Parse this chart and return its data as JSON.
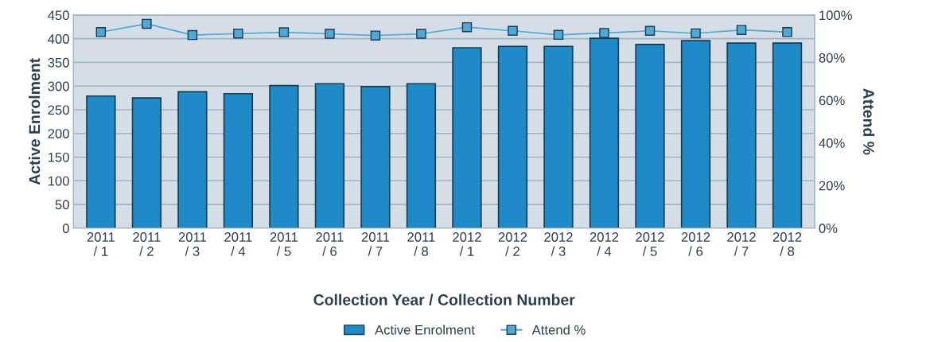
{
  "chart_data": {
    "type": "bar",
    "xlabel": "Collection Year / Collection Number",
    "ylabel": "Active Enrolment",
    "y2label": "Attend %",
    "categories": [
      "2011\n/ 1",
      "2011\n/ 2",
      "2011\n/ 3",
      "2011\n/ 4",
      "2011\n/ 5",
      "2011\n/ 6",
      "2011\n/ 7",
      "2011\n/ 8",
      "2012\n/ 1",
      "2012\n/ 2",
      "2012\n/ 3",
      "2012\n/ 4",
      "2012\n/ 5",
      "2012\n/ 6",
      "2012\n/ 7",
      "2012\n/ 8"
    ],
    "series": [
      {
        "name": "Active Enrolment",
        "color": "#1f8ac8",
        "values": [
          279,
          275,
          288,
          284,
          301,
          305,
          299,
          305,
          381,
          384,
          384,
          401,
          388,
          396,
          391,
          391
        ]
      },
      {
        "name": "Attend %",
        "type": "line",
        "axis": "y2",
        "color": "#4fa9d8",
        "marker": "square",
        "values": [
          92.0,
          95.9,
          90.6,
          91.3,
          91.9,
          91.2,
          90.4,
          91.2,
          94.3,
          92.6,
          90.7,
          91.6,
          92.6,
          91.4,
          93.0,
          92.0
        ]
      }
    ],
    "ylim": [
      0,
      450
    ],
    "yticks": [
      0,
      50,
      100,
      150,
      200,
      250,
      300,
      350,
      400,
      450
    ],
    "y2lim": [
      0,
      100
    ],
    "y2ticks": [
      {
        "value": 0,
        "label": "0%"
      },
      {
        "value": 20,
        "label": "20%"
      },
      {
        "value": 40,
        "label": "40%"
      },
      {
        "value": 60,
        "label": "60%"
      },
      {
        "value": 80,
        "label": "80%"
      },
      {
        "value": 100,
        "label": "100%"
      }
    ],
    "grid": "y",
    "legend": "bottom"
  }
}
